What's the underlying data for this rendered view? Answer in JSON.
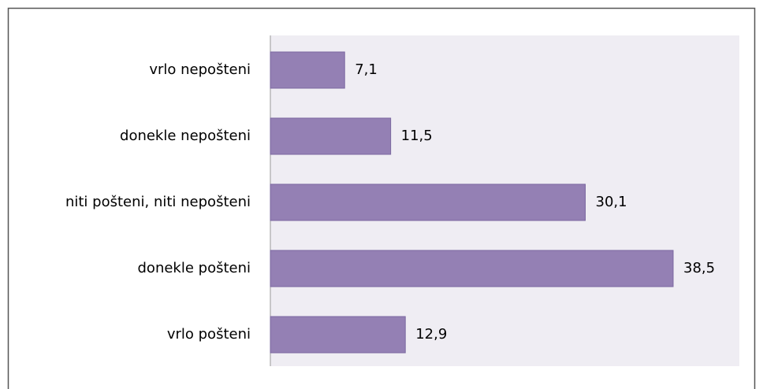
{
  "chart_data": {
    "type": "bar",
    "orientation": "horizontal",
    "categories": [
      "vrlo nepošteni",
      "donekle nepošteni",
      "niti pošteni, niti nepošteni",
      "donekle pošteni",
      "vrlo pošteni"
    ],
    "values": [
      7.1,
      11.5,
      30.1,
      38.5,
      12.9
    ],
    "value_labels": [
      "7,1",
      "11,5",
      "30,1",
      "38,5",
      "12,9"
    ],
    "color": "#9480b4"
  }
}
